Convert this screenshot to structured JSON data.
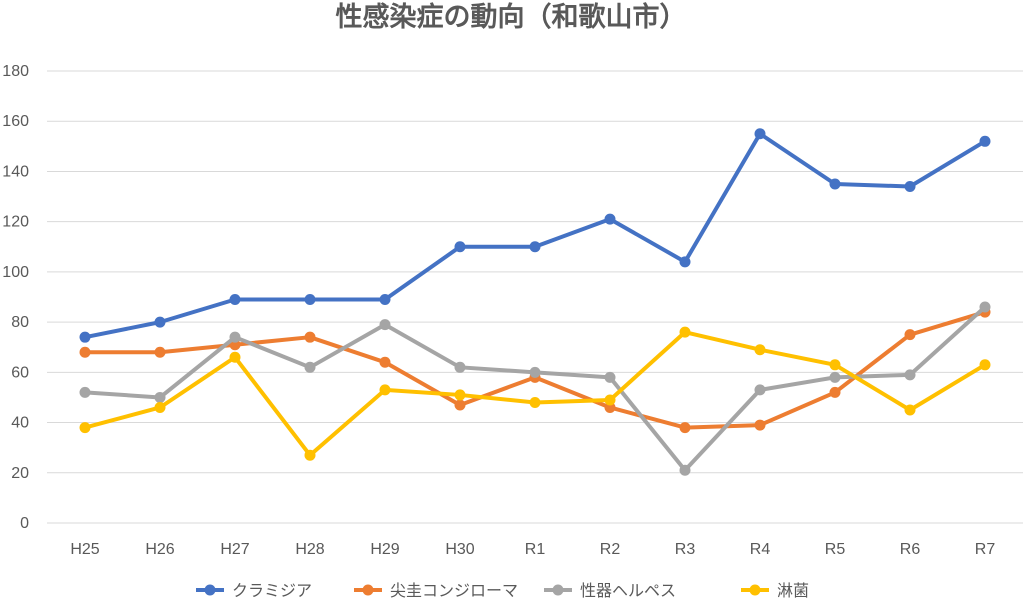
{
  "chart_data": {
    "type": "line",
    "title": "性感染症の動向（和歌山市）",
    "xlabel": "",
    "ylabel": "",
    "ylim": [
      0,
      180
    ],
    "yticks": [
      0,
      20,
      40,
      60,
      80,
      100,
      120,
      140,
      160,
      180
    ],
    "grid": true,
    "legend_position": "bottom",
    "categories": [
      "H25",
      "H26",
      "H27",
      "H28",
      "H29",
      "H30",
      "R1",
      "R2",
      "R3",
      "R4",
      "R5",
      "R6",
      "R7"
    ],
    "series": [
      {
        "name": "クラミジア",
        "color": "#4472c4",
        "values": [
          74,
          80,
          89,
          89,
          89,
          110,
          110,
          121,
          104,
          155,
          135,
          134,
          152
        ]
      },
      {
        "name": "尖圭コンジローマ",
        "color": "#ed7d31",
        "values": [
          68,
          68,
          71,
          74,
          64,
          47,
          58,
          46,
          38,
          39,
          52,
          75,
          84
        ]
      },
      {
        "name": "性器ヘルペス",
        "color": "#a5a5a5",
        "values": [
          52,
          50,
          74,
          62,
          79,
          62,
          60,
          58,
          21,
          53,
          58,
          59,
          86
        ]
      },
      {
        "name": "淋菌",
        "color": "#ffc000",
        "values": [
          38,
          46,
          66,
          27,
          53,
          51,
          48,
          49,
          76,
          69,
          63,
          45,
          63
        ]
      }
    ]
  }
}
